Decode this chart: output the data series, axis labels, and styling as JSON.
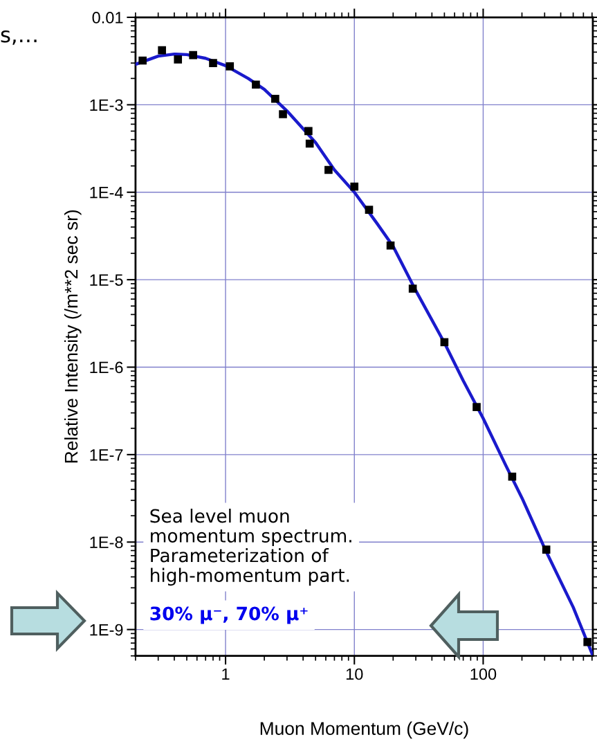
{
  "chart_data": {
    "type": "scatter",
    "xlabel": "Muon Momentum (GeV/c)",
    "ylabel": "Relative Intensity (/m**2 sec sr)",
    "annotations": [
      "s,…",
      "Sea level muon\nmomentum spectrum.\nParameterization of\nhigh-momentum part.",
      "30% μ⁻, 70% μ⁺"
    ],
    "log": "xy",
    "xlim": [
      0.2,
      710
    ],
    "ylim": [
      5e-10,
      0.01
    ],
    "xticks": [
      1,
      10,
      100
    ],
    "yticks": [
      0.01,
      {
        "value": 0.001,
        "label": "1E-3"
      },
      {
        "value": 0.0001,
        "label": "1E-4"
      },
      {
        "value": 1e-05,
        "label": "1E-5"
      },
      {
        "value": 1e-06,
        "label": "1E-6"
      },
      {
        "value": 1e-07,
        "label": "1E-7"
      },
      {
        "value": 1e-08,
        "label": "1E-8"
      },
      {
        "value": 1e-09,
        "label": "1E-9"
      }
    ],
    "grid": true,
    "series": [
      {
        "type": "line",
        "color": "#1a1acc",
        "marker": "none",
        "line_style": "solid",
        "x": [
          0.2,
          0.3,
          0.4,
          0.5,
          0.7,
          1,
          1.5,
          2,
          3,
          5,
          7,
          10,
          15,
          20,
          30,
          50,
          70,
          100,
          150,
          200,
          300,
          500,
          700
        ],
        "values": [
          0.0029,
          0.0036,
          0.0038,
          0.00375,
          0.0034,
          0.0028,
          0.002,
          0.0015,
          0.00085,
          0.00037,
          0.00018,
          0.0001,
          4.4e-05,
          2.4e-05,
          7.5e-06,
          1.9e-06,
          7e-07,
          2.6e-07,
          7.5e-08,
          3.2e-08,
          8.5e-09,
          1.8e-09,
          5.3e-10
        ]
      },
      {
        "type": "scatter",
        "color": "#000000",
        "marker": "square",
        "x": [
          0.227,
          0.321,
          0.427,
          0.56,
          0.8,
          1.08,
          1.72,
          2.43,
          2.79,
          4.4,
          4.5,
          6.3,
          10,
          13,
          19.1,
          28.4,
          50,
          89,
          168,
          309,
          645
        ],
        "values": [
          0.0032,
          0.0042,
          0.0033,
          0.0037,
          0.003,
          0.00275,
          0.0017,
          0.00117,
          0.00078,
          0.0005,
          0.00036,
          0.00018,
          0.000116,
          6.3e-05,
          2.46e-05,
          7.9e-06,
          1.93e-06,
          3.5e-07,
          5.6e-08,
          8.2e-09,
          7.2e-10
        ]
      }
    ]
  }
}
